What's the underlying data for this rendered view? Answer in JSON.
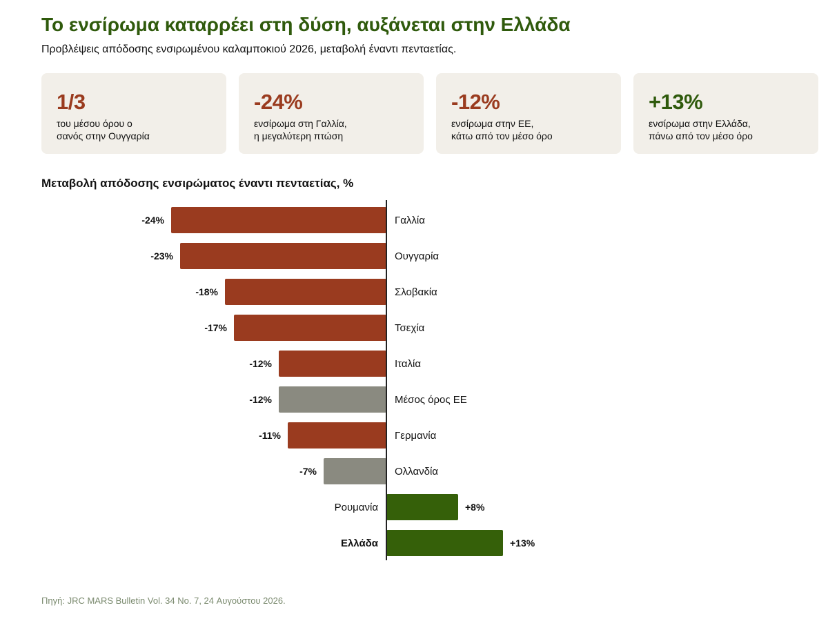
{
  "header": {
    "title": "Το ενσίρωμα καταρρέει στη δύση, αυξάνεται στην Ελλάδα",
    "subtitle": "Προβλέψεις απόδοσης ενσιρωμένου καλαμποκιού 2026, μεταβολή έναντι πενταετίας."
  },
  "cards": [
    {
      "value": "1/3",
      "line1": "του μέσου όρου ο",
      "line2": "σανός στην Ουγγαρία",
      "tone": "negative"
    },
    {
      "value": "-24%",
      "line1": "ενσίρωμα στη Γαλλία,",
      "line2": "η μεγαλύτερη πτώση",
      "tone": "negative"
    },
    {
      "value": "-12%",
      "line1": "ενσίρωμα στην ΕΕ,",
      "line2": "κάτω από τον μέσο όρο",
      "tone": "negative"
    },
    {
      "value": "+13%",
      "line1": "ενσίρωμα στην Ελλάδα,",
      "line2": "πάνω από τον μέσο όρο",
      "tone": "positive"
    }
  ],
  "chart_data": {
    "type": "bar",
    "orientation": "horizontal",
    "title": "Μεταβολή απόδοσης ενσιρώματος έναντι πενταετίας, %",
    "categories": [
      "Γαλλία",
      "Ουγγαρία",
      "Σλοβακία",
      "Τσεχία",
      "Ιταλία",
      "Μέσος όρος ΕΕ",
      "Γερμανία",
      "Ολλανδία",
      "Ρουμανία",
      "Ελλάδα"
    ],
    "values": [
      -24,
      -23,
      -18,
      -17,
      -12,
      -12,
      -11,
      -7,
      8,
      13
    ],
    "value_labels": [
      "-24%",
      "-23%",
      "-18%",
      "-17%",
      "-12%",
      "-12%",
      "-11%",
      "-7%",
      "+8%",
      "+13%"
    ],
    "bar_kind": [
      "negative",
      "negative",
      "negative",
      "negative",
      "negative",
      "neutral",
      "negative",
      "neutral",
      "positive",
      "positive"
    ],
    "highlight": [
      "Ελλάδα"
    ],
    "xlim": [
      -25,
      16
    ],
    "grid": false,
    "legend": "none",
    "colors": {
      "negative": "#9a3b1f",
      "neutral": "#8a8a80",
      "positive": "#356009",
      "axis": "#222222"
    }
  },
  "footer": {
    "source": "Πηγή: JRC MARS Bulletin Vol. 34 No. 7, 24 Αυγούστου 2026."
  }
}
